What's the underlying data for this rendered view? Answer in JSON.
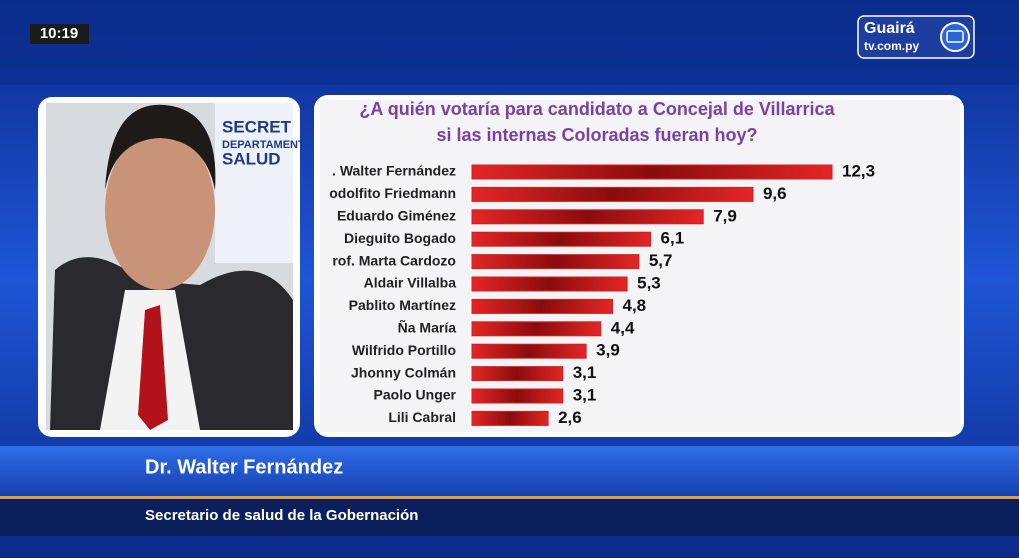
{
  "broadcast": {
    "clock": "10:19",
    "logo": {
      "name": "Guairá",
      "site": "tv.com.py"
    },
    "video_sign": [
      "SECRET",
      "DEPARTAMENT",
      "SALUD"
    ],
    "lower_third": {
      "name": "Dr. Walter Fernández",
      "role": "Secretario de salud de la Gobernación"
    }
  },
  "chart_data": {
    "type": "bar",
    "orientation": "horizontal",
    "title": [
      "¿A quién votaría para candidato a Concejal de Villarrica",
      "si las internas Coloradas fueran hoy?"
    ],
    "categories": [
      ". Walter Fernández",
      "odolfito Friedmann",
      "Eduardo Giménez",
      "Dieguito Bogado",
      "rof. Marta Cardozo",
      "Aldair Villalba",
      "Pablito Martínez",
      "Ña María",
      "Wilfrido Portillo",
      "Jhonny Colmán",
      "Paolo Unger",
      "Lili Cabral"
    ],
    "values": [
      12.3,
      9.6,
      7.9,
      6.1,
      5.7,
      5.3,
      4.8,
      4.4,
      3.9,
      3.1,
      3.1,
      2.6
    ],
    "value_labels": [
      "12,3",
      "9,6",
      "7,9",
      "6,1",
      "5,7",
      "5,3",
      "4,8",
      "4,4",
      "3,9",
      "3,1",
      "3,1",
      "2,6"
    ],
    "color": "#d42020"
  }
}
